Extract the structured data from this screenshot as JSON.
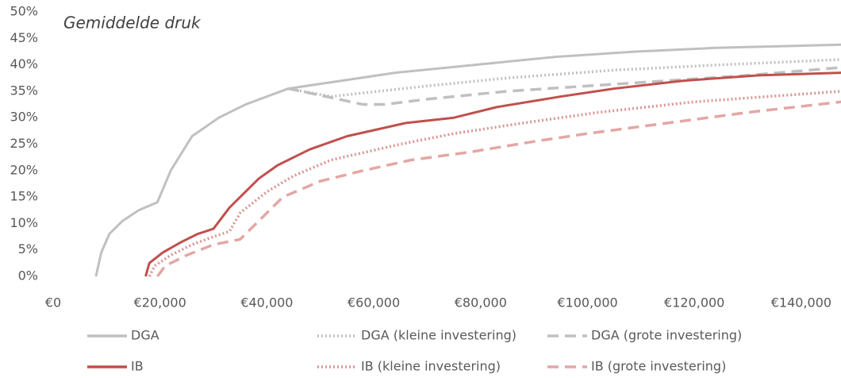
{
  "chart_data": {
    "type": "line",
    "annotation": "Gemiddelde druk",
    "xlim": [
      0,
      147500
    ],
    "ylim": [
      0,
      50
    ],
    "xticks": [
      {
        "value": 0,
        "label": "€0"
      },
      {
        "value": 20000,
        "label": "€20,000"
      },
      {
        "value": 40000,
        "label": "€40,000"
      },
      {
        "value": 60000,
        "label": "€60,000"
      },
      {
        "value": 80000,
        "label": "€80,000"
      },
      {
        "value": 100000,
        "label": "€100,000"
      },
      {
        "value": 120000,
        "label": "€120,000"
      },
      {
        "value": 140000,
        "label": "€140,000"
      }
    ],
    "yticks": [
      {
        "value": 0,
        "label": "0%"
      },
      {
        "value": 5,
        "label": "5%"
      },
      {
        "value": 10,
        "label": "10%"
      },
      {
        "value": 15,
        "label": "15%"
      },
      {
        "value": 20,
        "label": "20%"
      },
      {
        "value": 25,
        "label": "25%"
      },
      {
        "value": 30,
        "label": "30%"
      },
      {
        "value": 35,
        "label": "35%"
      },
      {
        "value": 40,
        "label": "40%"
      },
      {
        "value": 45,
        "label": "45%"
      },
      {
        "value": 50,
        "label": "50%"
      }
    ],
    "grid": false,
    "legend": "bottom",
    "series": [
      {
        "name": "DGA",
        "color": "#c0c0c0",
        "dash": "solid",
        "x": [
          8000,
          9000,
          10500,
          13000,
          16000,
          19500,
          22000,
          26000,
          31000,
          36000,
          44000,
          54000,
          64000,
          79000,
          94000,
          109000,
          124000,
          147500
        ],
        "values": [
          0,
          4.5,
          8,
          10.5,
          12.5,
          14,
          20,
          26.5,
          30,
          32.5,
          35.5,
          37,
          38.5,
          40,
          41.5,
          42.5,
          43.2,
          43.8
        ]
      },
      {
        "name": "DGA (kleine investering)",
        "color": "#c0c0c0",
        "dash": "dotted",
        "x": [
          44000,
          52000,
          70000,
          85000,
          105000,
          125000,
          147500
        ],
        "values": [
          35.5,
          34,
          36,
          37.5,
          39,
          40,
          41
        ]
      },
      {
        "name": "DGA (grote investering)",
        "color": "#c0c0c0",
        "dash": "dashed",
        "x": [
          44000,
          52000,
          58000,
          62000,
          70000,
          85000,
          100000,
          115000,
          130000,
          147500
        ],
        "values": [
          35.5,
          33.8,
          32.5,
          32.5,
          33.5,
          35,
          36,
          37,
          38,
          39.5
        ]
      },
      {
        "name": "IB",
        "color": "#c0504d",
        "dash": "solid",
        "x": [
          17300,
          18000,
          20500,
          24000,
          27000,
          30000,
          33000,
          38500,
          42000,
          48000,
          55000,
          66000,
          75000,
          83000,
          95000,
          105000,
          118000,
          132000,
          147500
        ],
        "values": [
          0,
          2.5,
          4.5,
          6.5,
          8,
          9,
          13,
          18.5,
          21,
          24,
          26.5,
          29,
          30,
          32,
          34,
          35.5,
          37,
          38,
          38.5
        ]
      },
      {
        "name": "IB (kleine investering)",
        "color": "#d99694",
        "dash": "dotted",
        "x": [
          18000,
          19000,
          22000,
          26000,
          30000,
          33000,
          35000,
          40000,
          45000,
          52000,
          65000,
          75000,
          88000,
          102000,
          120000,
          147500
        ],
        "values": [
          0,
          2,
          4,
          6,
          7.5,
          8.5,
          12,
          16,
          19,
          22,
          25,
          27,
          29,
          31,
          33,
          35
        ]
      },
      {
        "name": "IB (grote investering)",
        "color": "#e3a7a5",
        "dash": "dashed",
        "x": [
          19500,
          21000,
          25000,
          30000,
          35000,
          38500,
          43000,
          50000,
          58000,
          67000,
          78000,
          90000,
          100000,
          115000,
          130000,
          147500
        ],
        "values": [
          0,
          2,
          4,
          6,
          7,
          10.5,
          15,
          18,
          20,
          22,
          23.5,
          25.5,
          27,
          29,
          31,
          33
        ]
      }
    ]
  }
}
